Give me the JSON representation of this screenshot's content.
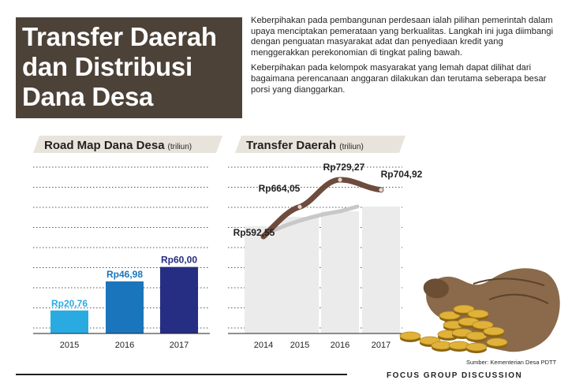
{
  "header": {
    "title_lines": [
      "Transfer Daerah",
      "dan Distribusi",
      "Dana Desa"
    ],
    "paragraphs": [
      "Keberpihakan pada pembangunan perdesaan ialah pilihan pemerintah dalam upaya menciptakan pemerataan yang berkualitas. Langkah ini juga diimbangi dengan penguatan masyarakat adat dan penyediaan kredit yang menggerakkan perekonomian di tingkat paling bawah.",
      "Keberpihakan pada kelompok masyarakat yang lemah dapat dilihat dari bagaimana perencanaan anggaran dilakukan dan terutama seberapa besar porsi yang dianggarkan."
    ]
  },
  "colors": {
    "title_bg": "#4d4238",
    "label_tag": "#e8e4dc",
    "bar_2015": "#29abe2",
    "bar_2016": "#1b75bc",
    "bar_2017": "#262e83",
    "transfer_bar": "#ebebeb",
    "curve_main": "#6d4c3d",
    "curve_shadow": "#c8c8c8",
    "label_blue": "#1b75bc",
    "label_navy": "#262e83"
  },
  "chart_data": [
    {
      "type": "bar",
      "title": "Road Map Dana Desa",
      "unit": "(triliun)",
      "categories": [
        "2015",
        "2016",
        "2017"
      ],
      "values": [
        20.76,
        46.98,
        60.0
      ],
      "value_labels": [
        "Rp20,76",
        "Rp46,98",
        "Rp60,00"
      ],
      "grid": true,
      "ylim": [
        0,
        150
      ]
    },
    {
      "type": "line",
      "title": "Transfer Daerah",
      "unit": "(triliun)",
      "categories": [
        "2014",
        "2015",
        "2016",
        "2017"
      ],
      "values": [
        592.55,
        664.05,
        729.27,
        704.92
      ],
      "value_labels": [
        "Rp592,55",
        "Rp664,05",
        "Rp729,27",
        "Rp704,92"
      ],
      "grid": true
    }
  ],
  "footer": {
    "source": "Sumber: Kementerian Desa PDTT",
    "cut_text": "FOCUS GROUP DISCUSSION"
  }
}
